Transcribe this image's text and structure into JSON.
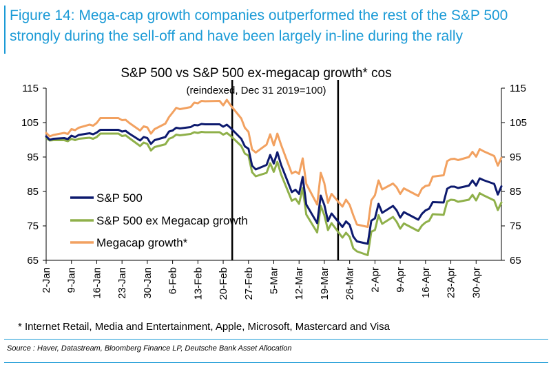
{
  "figure": {
    "title_line1": "Figure 14: Mega-cap growth companies outperformed the rest of the S&P 500",
    "title_line2": "strongly during the sell-off and have been largely in-line during the rally"
  },
  "footnote": "* Internet Retail, Media and Entertainment, Apple, Microsoft, Mastercard and Visa",
  "source": "Source : Haver, Datastream, Bloomberg Finance LP, Deutsche Bank Asset Allocation",
  "colors": {
    "title": "#1a9ad6",
    "sp500": "#0d1a6e",
    "exmega": "#8fb04a",
    "mega": "#f2a160",
    "vline": "#000000"
  },
  "chart_data": {
    "type": "line",
    "title": "S&P 500 vs S&P 500 ex-megacap growth* cos",
    "subtitle": "(reindexed, Dec 31 2019=100)",
    "xlabel": "",
    "ylabel": "",
    "ylim": [
      65,
      115
    ],
    "yticks": [
      65,
      75,
      85,
      95,
      105,
      115
    ],
    "x_start": "2-Jan",
    "x_range_days": [
      1,
      120
    ],
    "x_ticks": [
      {
        "label": "2-Jan",
        "day": 1
      },
      {
        "label": "9-Jan",
        "day": 8
      },
      {
        "label": "16-Jan",
        "day": 15
      },
      {
        "label": "23-Jan",
        "day": 22
      },
      {
        "label": "30-Jan",
        "day": 29
      },
      {
        "label": "6-Feb",
        "day": 36
      },
      {
        "label": "13-Feb",
        "day": 43
      },
      {
        "label": "20-Feb",
        "day": 50
      },
      {
        "label": "27-Feb",
        "day": 57
      },
      {
        "label": "5-Mar",
        "day": 64
      },
      {
        "label": "12-Mar",
        "day": 71
      },
      {
        "label": "19-Mar",
        "day": 78
      },
      {
        "label": "26-Mar",
        "day": 85
      },
      {
        "label": "2-Apr",
        "day": 92
      },
      {
        "label": "9-Apr",
        "day": 99
      },
      {
        "label": "16-Apr",
        "day": 106
      },
      {
        "label": "23-Apr",
        "day": 113
      },
      {
        "label": "30-Apr",
        "day": 120
      }
    ],
    "vertical_lines_day": [
      52.5,
      81.8
    ],
    "legend_position": "left-middle",
    "series": [
      {
        "name": "S&P 500",
        "color": "#0d1a6e",
        "points": [
          [
            1,
            101
          ],
          [
            2,
            100
          ],
          [
            3,
            100.3
          ],
          [
            6,
            100.5
          ],
          [
            7,
            100.2
          ],
          [
            8,
            101.2
          ],
          [
            9,
            100.8
          ],
          [
            10,
            101.4
          ],
          [
            13,
            101.9
          ],
          [
            14,
            101.6
          ],
          [
            15,
            102.1
          ],
          [
            16,
            102.9
          ],
          [
            17,
            102.9
          ],
          [
            21,
            102.9
          ],
          [
            22,
            102.4
          ],
          [
            23,
            102.6
          ],
          [
            24,
            101.8
          ],
          [
            27,
            99.8
          ],
          [
            28,
            100.8
          ],
          [
            29,
            100.5
          ],
          [
            30,
            98.8
          ],
          [
            31,
            99.9
          ],
          [
            34,
            100.8
          ],
          [
            35,
            102.4
          ],
          [
            36,
            102.7
          ],
          [
            37,
            103.5
          ],
          [
            38,
            103.3
          ],
          [
            41,
            103.7
          ],
          [
            42,
            104.3
          ],
          [
            43,
            104.2
          ],
          [
            44,
            104.6
          ],
          [
            45,
            104.5
          ],
          [
            49,
            104.5
          ],
          [
            50,
            103.8
          ],
          [
            51,
            104.4
          ],
          [
            52,
            103.5
          ],
          [
            55,
            100.3
          ],
          [
            56,
            98.1
          ],
          [
            57,
            97.4
          ],
          [
            58,
            92.5
          ],
          [
            59,
            91.4
          ],
          [
            62,
            92.7
          ],
          [
            63,
            95.6
          ],
          [
            64,
            93.1
          ],
          [
            65,
            96.4
          ],
          [
            66,
            92.8
          ],
          [
            69,
            84.8
          ],
          [
            70,
            85.5
          ],
          [
            71,
            84.3
          ],
          [
            72,
            89.2
          ],
          [
            73,
            81.2
          ],
          [
            76,
            75.8
          ],
          [
            77,
            83.8
          ],
          [
            78,
            81.1
          ],
          [
            79,
            76.4
          ],
          [
            80,
            78.6
          ],
          [
            83,
            74.7
          ],
          [
            84,
            76.3
          ],
          [
            85,
            75.3
          ],
          [
            86,
            71.9
          ],
          [
            87,
            70.5
          ],
          [
            90,
            69.8
          ],
          [
            91,
            76.5
          ],
          [
            92,
            77.2
          ],
          [
            93,
            81.4
          ],
          [
            94,
            78.8
          ],
          [
            97,
            80.8
          ],
          [
            98,
            79.5
          ],
          [
            99,
            77.4
          ],
          [
            100,
            79.0
          ],
          [
            104,
            76.8
          ],
          [
            105,
            78.5
          ],
          [
            106,
            79.5
          ],
          [
            107,
            80.0
          ],
          [
            108,
            81.9
          ],
          [
            111,
            81.8
          ],
          [
            112,
            85.8
          ],
          [
            113,
            86.4
          ],
          [
            114,
            86.4
          ],
          [
            115,
            86.0
          ],
          [
            118,
            86.7
          ],
          [
            119,
            88.2
          ],
          [
            120,
            86.7
          ],
          [
            121,
            88.8
          ],
          [
            122,
            88.3
          ],
          [
            125,
            87.2
          ],
          [
            126,
            84.1
          ],
          [
            127,
            86.5
          ]
        ]
      },
      {
        "name": "S&P 500 ex Megacap growth",
        "color": "#8fb04a",
        "points": [
          [
            1,
            100.5
          ],
          [
            2,
            99.8
          ],
          [
            3,
            99.9
          ],
          [
            6,
            99.9
          ],
          [
            7,
            99.6
          ],
          [
            8,
            100.3
          ],
          [
            9,
            99.9
          ],
          [
            10,
            100.3
          ],
          [
            13,
            100.6
          ],
          [
            14,
            100.3
          ],
          [
            15,
            100.8
          ],
          [
            16,
            101.8
          ],
          [
            17,
            101.8
          ],
          [
            21,
            101.8
          ],
          [
            22,
            101.1
          ],
          [
            23,
            101.3
          ],
          [
            24,
            100.5
          ],
          [
            27,
            98.2
          ],
          [
            28,
            99.2
          ],
          [
            29,
            98.8
          ],
          [
            30,
            96.9
          ],
          [
            31,
            97.9
          ],
          [
            34,
            98.7
          ],
          [
            35,
            100.3
          ],
          [
            36,
            100.7
          ],
          [
            37,
            101.5
          ],
          [
            38,
            101.3
          ],
          [
            41,
            101.7
          ],
          [
            42,
            102.2
          ],
          [
            43,
            102
          ],
          [
            44,
            102.3
          ],
          [
            45,
            102.2
          ],
          [
            49,
            102.2
          ],
          [
            50,
            101.5
          ],
          [
            51,
            102
          ],
          [
            52,
            101.2
          ],
          [
            55,
            98.2
          ],
          [
            56,
            96
          ],
          [
            57,
            95.4
          ],
          [
            58,
            90.6
          ],
          [
            59,
            89.4
          ],
          [
            62,
            90.4
          ],
          [
            63,
            93.2
          ],
          [
            64,
            90.7
          ],
          [
            65,
            93.6
          ],
          [
            66,
            90
          ],
          [
            69,
            82.3
          ],
          [
            70,
            82.9
          ],
          [
            71,
            81.4
          ],
          [
            72,
            86
          ],
          [
            73,
            78.3
          ],
          [
            76,
            73.1
          ],
          [
            77,
            80.8
          ],
          [
            78,
            78.1
          ],
          [
            79,
            73.8
          ],
          [
            80,
            75.8
          ],
          [
            83,
            71.6
          ],
          [
            84,
            73
          ],
          [
            85,
            71.8
          ],
          [
            86,
            68.5
          ],
          [
            87,
            67.6
          ],
          [
            90,
            66.5
          ],
          [
            91,
            73.3
          ],
          [
            92,
            73.8
          ],
          [
            93,
            78.1
          ],
          [
            94,
            75.6
          ],
          [
            97,
            77.6
          ],
          [
            98,
            76.2
          ],
          [
            99,
            74.2
          ],
          [
            100,
            75.7
          ],
          [
            104,
            73.5
          ],
          [
            105,
            75.1
          ],
          [
            106,
            76
          ],
          [
            107,
            76.5
          ],
          [
            108,
            78.4
          ],
          [
            111,
            78.2
          ],
          [
            112,
            82.1
          ],
          [
            113,
            82.6
          ],
          [
            114,
            82.5
          ],
          [
            115,
            82
          ],
          [
            118,
            82.6
          ],
          [
            119,
            84
          ],
          [
            120,
            82.4
          ],
          [
            121,
            84.5
          ],
          [
            122,
            83.9
          ],
          [
            125,
            82.4
          ],
          [
            126,
            79.6
          ],
          [
            127,
            81.8
          ]
        ]
      },
      {
        "name": "Megacap growth*",
        "color": "#f2a160",
        "points": [
          [
            1,
            102
          ],
          [
            2,
            101
          ],
          [
            3,
            101.4
          ],
          [
            6,
            102
          ],
          [
            7,
            101.7
          ],
          [
            8,
            103.1
          ],
          [
            9,
            102.8
          ],
          [
            10,
            103.5
          ],
          [
            13,
            104.4
          ],
          [
            14,
            104.1
          ],
          [
            15,
            104.9
          ],
          [
            16,
            106.3
          ],
          [
            17,
            106.3
          ],
          [
            21,
            106.3
          ],
          [
            22,
            105.7
          ],
          [
            23,
            105.8
          ],
          [
            24,
            104.9
          ],
          [
            27,
            102.7
          ],
          [
            28,
            103.9
          ],
          [
            29,
            103.6
          ],
          [
            30,
            101.8
          ],
          [
            31,
            103.1
          ],
          [
            34,
            104.7
          ],
          [
            35,
            106.6
          ],
          [
            36,
            107.9
          ],
          [
            37,
            109.3
          ],
          [
            38,
            108.9
          ],
          [
            41,
            109.5
          ],
          [
            42,
            110.8
          ],
          [
            43,
            110.6
          ],
          [
            44,
            111.3
          ],
          [
            45,
            111.2
          ],
          [
            49,
            111.3
          ],
          [
            50,
            110
          ],
          [
            51,
            111.6
          ],
          [
            52,
            110.1
          ],
          [
            55,
            106.2
          ],
          [
            56,
            103.5
          ],
          [
            57,
            102.3
          ],
          [
            58,
            97.2
          ],
          [
            59,
            96.3
          ],
          [
            62,
            98.6
          ],
          [
            63,
            101.6
          ],
          [
            64,
            98.4
          ],
          [
            65,
            101.8
          ],
          [
            66,
            98.6
          ],
          [
            69,
            90.2
          ],
          [
            70,
            90.8
          ],
          [
            71,
            90.1
          ],
          [
            72,
            94.6
          ],
          [
            73,
            87.2
          ],
          [
            76,
            81.2
          ],
          [
            77,
            90.4
          ],
          [
            78,
            87.4
          ],
          [
            79,
            81.7
          ],
          [
            80,
            84.3
          ],
          [
            83,
            80.6
          ],
          [
            84,
            82.6
          ],
          [
            85,
            81.1
          ],
          [
            86,
            78.1
          ],
          [
            87,
            75.4
          ],
          [
            90,
            74.7
          ],
          [
            91,
            82.4
          ],
          [
            92,
            83.9
          ],
          [
            93,
            88.2
          ],
          [
            94,
            85.6
          ],
          [
            97,
            87.3
          ],
          [
            98,
            86.2
          ],
          [
            99,
            84.3
          ],
          [
            100,
            85.9
          ],
          [
            104,
            83.7
          ],
          [
            105,
            85.8
          ],
          [
            106,
            86.6
          ],
          [
            107,
            86.8
          ],
          [
            108,
            89.3
          ],
          [
            111,
            89.7
          ],
          [
            112,
            93.8
          ],
          [
            113,
            94.4
          ],
          [
            114,
            94.5
          ],
          [
            115,
            94.1
          ],
          [
            118,
            95
          ],
          [
            119,
            96.5
          ],
          [
            120,
            95.1
          ],
          [
            121,
            97.3
          ],
          [
            122,
            96.7
          ],
          [
            125,
            95.3
          ],
          [
            126,
            92.5
          ],
          [
            127,
            94.8
          ]
        ]
      }
    ]
  }
}
